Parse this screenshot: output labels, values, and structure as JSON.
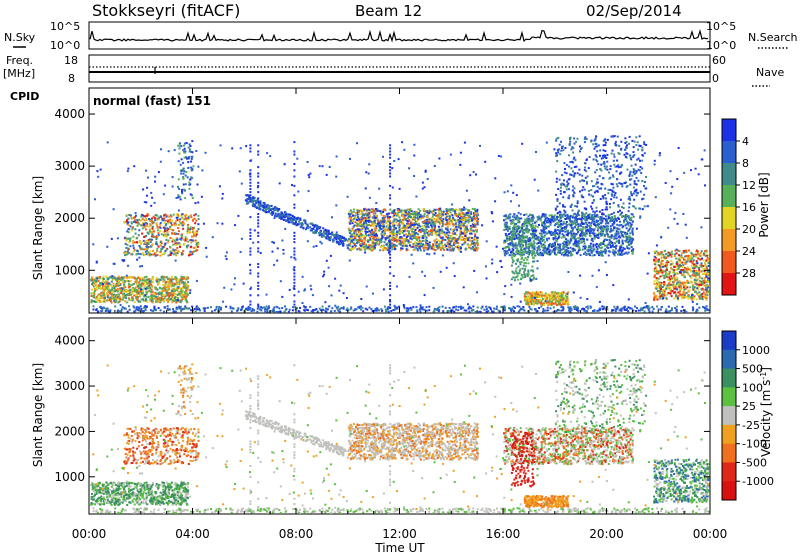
{
  "header": {
    "station": "Stokkseyri (fitACF)",
    "beam": "Beam 12",
    "date": "02/Sep/2014"
  },
  "top_panels": {
    "nsky_label": "N.Sky",
    "nsearch_label": "N.Search",
    "noise_ticks": [
      "10^5",
      "10^0"
    ],
    "freq_label": "Freq.",
    "freq_unit": "[MHz]",
    "freq_ticks": [
      "18",
      "8"
    ],
    "nave_label": "Nave",
    "nave_ticks": [
      "60",
      "0"
    ],
    "cpid_label": "CPID",
    "cpid_value": "normal (fast) 151"
  },
  "chart_data": [
    {
      "type": "heatmap",
      "panel": "power",
      "ylabel": "Slant Range [km]",
      "ylim": [
        180,
        4500
      ],
      "yticks": [
        "1000",
        "2000",
        "3000",
        "4000"
      ],
      "xlabel": "",
      "xlim_hours": [
        0,
        24
      ],
      "xticks": [
        "00:00",
        "04:00",
        "08:00",
        "12:00",
        "16:00",
        "20:00",
        "00:00"
      ],
      "colorbar": {
        "label": "Power [dB]",
        "ticks": [
          "4",
          "8",
          "12",
          "16",
          "20",
          "24",
          "28"
        ],
        "colors": [
          "#1c32e6",
          "#2a5fd0",
          "#3f8a8a",
          "#58b05a",
          "#e2d424",
          "#f29a24",
          "#f05a1c",
          "#e21414"
        ]
      }
    },
    {
      "type": "heatmap",
      "panel": "velocity",
      "ylabel": "Slant Range [km]",
      "ylim": [
        180,
        4500
      ],
      "yticks": [
        "1000",
        "2000",
        "3000",
        "4000"
      ],
      "xlabel": "Time UT",
      "xlim_hours": [
        0,
        24
      ],
      "xticks": [
        "00:00",
        "04:00",
        "08:00",
        "12:00",
        "16:00",
        "20:00",
        "00:00"
      ],
      "colorbar": {
        "label": "Velocity [m s",
        "label_sup": "-1",
        "label_end": "]",
        "ticks": [
          "1000",
          "500",
          "100",
          "25",
          "-25",
          "-100",
          "-500",
          "-1000"
        ],
        "colors": [
          "#1c3cc8",
          "#2a6ab0",
          "#3a9060",
          "#5cc040",
          "#c0c0bc",
          "#f0a020",
          "#f07020",
          "#e02818",
          "#d81010"
        ]
      }
    }
  ]
}
